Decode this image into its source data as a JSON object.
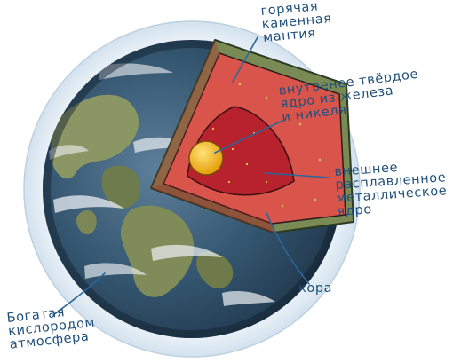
{
  "labels": {
    "mantle": "горячая\nкаменная\nмантия",
    "inner_core": "внутренее твёрдое\nядро из железа\nи никеля",
    "outer_core": "внешнее\nрасплавленное\nметаллическое\nядро",
    "crust": "кора",
    "atmosphere": "Богатая\nкислородом\nатмосфера"
  },
  "colors": {
    "label_text": "#1f4f7a",
    "leader_line": "#2a6699",
    "atmosphere": "#dde8f1",
    "ocean": "#2a4f6a",
    "land": "#7f8c5a",
    "crust": "#7a8a55",
    "mantle": "#d9554c",
    "outer_core": "#b8222c",
    "inner_core": "#f2b81c"
  }
}
